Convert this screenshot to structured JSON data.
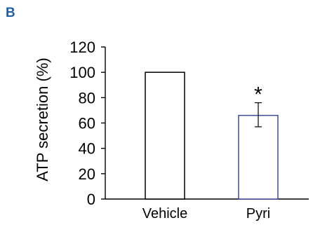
{
  "panel_label": "B",
  "colors": {
    "panel_label": "#1f5fa6",
    "vehicle_bar": "#000000",
    "pyri_bar": "#3b4c9b",
    "axis": "#000000"
  },
  "chart_data": {
    "type": "bar",
    "title": "",
    "xlabel": "",
    "ylabel": "ATP secretion (%)",
    "categories": [
      "Vehicle",
      "Pyri"
    ],
    "values": [
      100,
      66
    ],
    "error_bars": [
      null,
      {
        "low": 57,
        "high": 76
      }
    ],
    "annotations": [
      {
        "category": "Pyri",
        "text": "*"
      }
    ],
    "ylim": [
      0,
      120
    ],
    "yticks": [
      0,
      20,
      40,
      60,
      80,
      100,
      120
    ],
    "grid": false,
    "legend": "none"
  }
}
